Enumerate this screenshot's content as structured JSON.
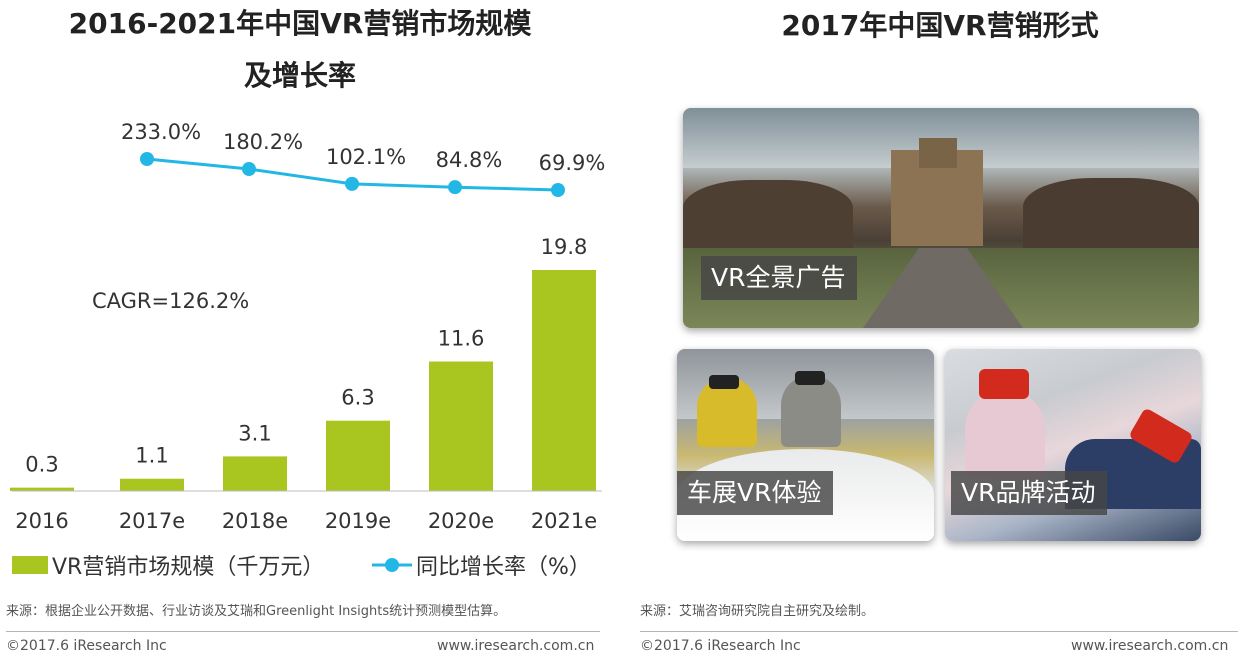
{
  "left_panel": {
    "title_line1": "2016-2021年中国VR营销市场规模",
    "title_line2": "及增长率",
    "source": "来源：根据企业公开数据、行业访谈及艾瑞和Greenlight Insights统计预测模型估算。",
    "copyright": "©2017.6 iResearch Inc",
    "url": "www.iresearch.com.cn"
  },
  "right_panel": {
    "title": "2017年中国VR营销形式",
    "photos": [
      {
        "label": "VR全景广告"
      },
      {
        "label": "车展VR体验"
      },
      {
        "label": "VR品牌活动"
      }
    ],
    "source": "来源：艾瑞咨询研究院自主研究及绘制。",
    "copyright": "©2017.6 iResearch Inc",
    "url": "www.iresearch.com.cn"
  },
  "chart_data": {
    "type": "bar",
    "title": "2016-2021年中国VR营销市场规模及增长率",
    "categories": [
      "2016",
      "2017e",
      "2018e",
      "2019e",
      "2020e",
      "2021e"
    ],
    "series": [
      {
        "name": "VR营销市场规模（千万元）",
        "type": "bar",
        "color": "#a9c51f",
        "values": [
          0.3,
          1.1,
          3.1,
          6.3,
          11.6,
          19.8
        ],
        "labels": [
          "0.3",
          "1.1",
          "3.1",
          "6.3",
          "11.6",
          "19.8"
        ]
      },
      {
        "name": "同比增长率（%）",
        "type": "line",
        "color": "#23b7e5",
        "values": [
          null,
          233.0,
          180.2,
          102.1,
          84.8,
          69.9
        ],
        "labels": [
          "",
          "233.0%",
          "180.2%",
          "102.1%",
          "84.8%",
          "69.9%"
        ]
      }
    ],
    "annotation": "CAGR=126.2%",
    "legend": {
      "bar_label": "VR营销市场规模（千万元）",
      "line_label": "同比增长率（%）",
      "position": "bottom"
    },
    "bar_ylim": [
      0,
      25
    ],
    "line_ylim": [
      0,
      250
    ],
    "grid": false
  }
}
